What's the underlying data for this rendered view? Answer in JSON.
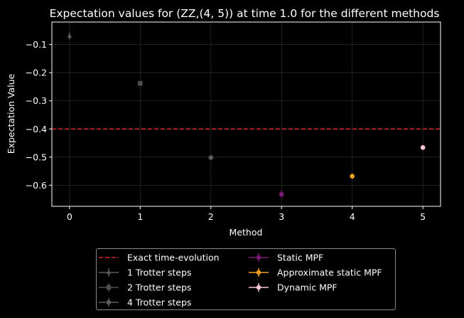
{
  "chart_data": {
    "type": "scatter",
    "title": "Expectation values for (ZZ,(4, 5)) at time 1.0 for the different methods",
    "xlabel": "Method",
    "ylabel": "Expectation Value",
    "xlim": [
      -0.25,
      5.25
    ],
    "ylim": [
      -0.675,
      -0.02
    ],
    "x_ticks": [
      "0",
      "1",
      "2",
      "3",
      "4",
      "5"
    ],
    "y_ticks": [
      "−0.1",
      "−0.2",
      "−0.3",
      "−0.4",
      "−0.5",
      "−0.6"
    ],
    "y_tick_values": [
      -0.1,
      -0.2,
      -0.3,
      -0.4,
      -0.5,
      -0.6
    ],
    "grid": true,
    "reference_line": {
      "name": "Exact time-evolution",
      "y": -0.4,
      "color": "#d62728",
      "style": "dashed"
    },
    "series": [
      {
        "name": "1 Trotter steps",
        "x": 0,
        "y": -0.07,
        "yerr": 0.012,
        "color": "#5a5a5a",
        "marker": "triangle"
      },
      {
        "name": "2 Trotter steps",
        "x": 1,
        "y": -0.238,
        "yerr": 0.005,
        "color": "#4e4e4e",
        "marker": "square"
      },
      {
        "name": "4 Trotter steps",
        "x": 2,
        "y": -0.502,
        "yerr": 0.004,
        "color": "#5e5e5e",
        "marker": "circle"
      },
      {
        "name": "Static MPF",
        "x": 3,
        "y": -0.632,
        "yerr": 0.012,
        "color": "#7b1a7b",
        "marker": "circle"
      },
      {
        "name": "Approximate static MPF",
        "x": 4,
        "y": -0.568,
        "yerr": 0.009,
        "color": "#f5a020",
        "marker": "circle"
      },
      {
        "name": "Dynamic MPF",
        "x": 5,
        "y": -0.466,
        "yerr": 0.004,
        "color": "#f6c6d3",
        "marker": "circle"
      }
    ],
    "legend_position": "below"
  }
}
